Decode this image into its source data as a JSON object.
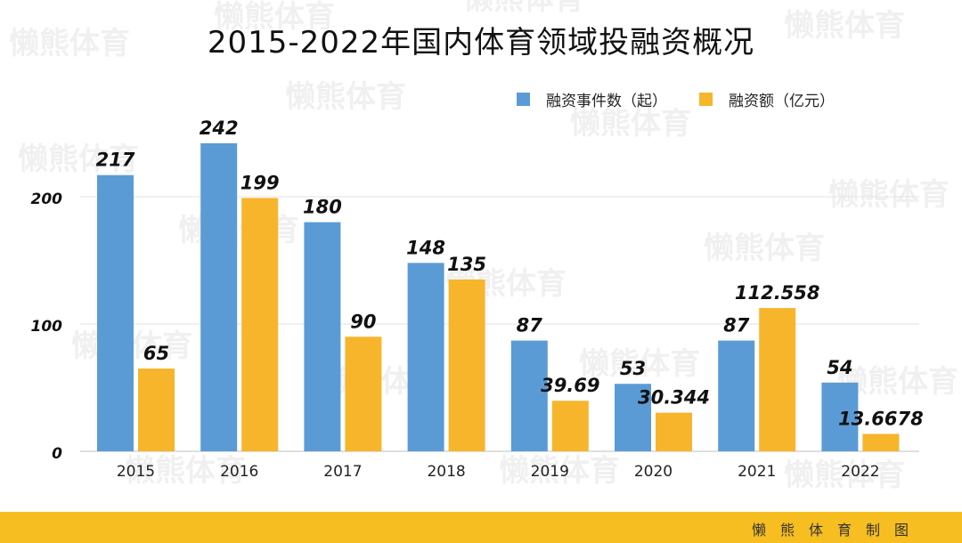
{
  "title": "2015-2022年国内体育领域投融资概况",
  "watermark": "懒熊体育",
  "footer_text": "懒熊体育制图",
  "colors": {
    "event": "#5b9bd5",
    "amount": "#f7b52c",
    "footer": "#f7be22"
  },
  "legend": [
    {
      "name": "融资事件数（起）",
      "color": "#5b9bd5"
    },
    {
      "name": "融资额（亿元）",
      "color": "#f7b52c"
    }
  ],
  "chart_data": {
    "type": "bar",
    "categories": [
      "2015",
      "2016",
      "2017",
      "2018",
      "2019",
      "2020",
      "2021",
      "2022"
    ],
    "series": [
      {
        "name": "融资事件数（起）",
        "values": [
          217,
          242,
          180,
          148,
          87,
          53,
          87,
          54
        ],
        "labels": [
          "217",
          "242",
          "180",
          "148",
          "87",
          "53",
          "87",
          "54"
        ]
      },
      {
        "name": "融资额（亿元）",
        "values": [
          65,
          199,
          90,
          135,
          39.69,
          30.344,
          112.558,
          13.6678
        ],
        "labels": [
          "65",
          "199",
          "90",
          "135",
          "39.69",
          "30.344",
          "112.558",
          "13.6678"
        ]
      }
    ],
    "yticks": [
      "0",
      "100",
      "200"
    ],
    "ylim": [
      0,
      260
    ],
    "grid": true,
    "legend_position": "top-right"
  }
}
